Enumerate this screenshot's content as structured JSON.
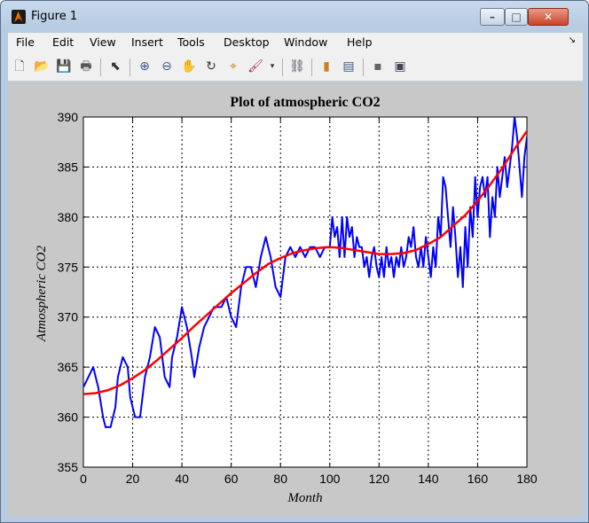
{
  "window": {
    "title": "Figure 1",
    "controls": {
      "minimize": "–",
      "maximize": "□",
      "close": "✕"
    }
  },
  "menu": [
    "File",
    "Edit",
    "View",
    "Insert",
    "Tools",
    "Desktop",
    "Window",
    "Help"
  ],
  "toolbar": {
    "icons": [
      "new-figure-icon",
      "open-file-icon",
      "save-icon",
      "print-icon",
      "pointer-icon",
      "zoom-in-icon",
      "zoom-out-icon",
      "pan-icon",
      "rotate-3d-icon",
      "data-cursor-icon",
      "brush-icon",
      "link-plot-icon",
      "colorbar-icon",
      "legend-icon",
      "hide-plot-tools-icon",
      "show-plot-tools-icon"
    ]
  },
  "chart_data": {
    "type": "line",
    "title": "Plot of atmospheric CO2",
    "xlabel": "Month",
    "ylabel": "Atmospheric CO2",
    "xlim": [
      0,
      180
    ],
    "ylim": [
      355,
      390
    ],
    "x_ticks": [
      0,
      20,
      40,
      60,
      80,
      100,
      120,
      140,
      160,
      180
    ],
    "y_ticks": [
      355,
      360,
      365,
      370,
      375,
      380,
      385,
      390
    ],
    "grid": true,
    "series": [
      {
        "color": "#0000ff",
        "x": [
          0,
          2,
          4,
          6,
          8,
          9,
          11,
          13,
          14,
          16,
          18,
          19,
          21,
          23,
          25,
          27,
          29,
          31,
          33,
          35,
          36,
          38,
          40,
          42,
          44,
          45,
          47,
          49,
          51,
          53,
          55,
          56,
          58,
          60,
          62,
          64,
          66,
          68,
          70,
          72,
          74,
          76,
          78,
          80,
          82,
          84,
          86,
          88,
          90,
          92,
          94,
          96,
          98,
          100,
          101,
          102,
          103,
          104,
          105,
          106,
          107,
          108,
          109,
          110,
          111,
          112,
          113,
          114,
          115,
          116,
          117,
          118,
          119,
          120,
          121,
          122,
          123,
          124,
          125,
          126,
          127,
          128,
          129,
          130,
          131,
          132,
          133,
          134,
          135,
          136,
          137,
          138,
          139,
          140,
          141,
          142,
          143,
          144,
          145,
          146,
          147,
          148,
          149,
          150,
          151,
          152,
          153,
          154,
          155,
          156,
          157,
          158,
          159,
          160,
          161,
          162,
          163,
          164,
          165,
          166,
          167,
          168,
          169,
          170,
          171,
          172,
          173,
          174,
          175,
          176,
          177,
          178,
          179,
          180
        ],
        "values": [
          363,
          364,
          365,
          363,
          360,
          359,
          359,
          361,
          364,
          366,
          365,
          362,
          360,
          360,
          364,
          366,
          369,
          368,
          364,
          363,
          366,
          368,
          371,
          369,
          366,
          364,
          367,
          369,
          370,
          371,
          371,
          371,
          372,
          370,
          369,
          373,
          375,
          375,
          373,
          376,
          378,
          376,
          373,
          372,
          376,
          377,
          376,
          377,
          376,
          377,
          377,
          376,
          377,
          377,
          380,
          378,
          379,
          376,
          380,
          376,
          380,
          378,
          379,
          376,
          378,
          377,
          377,
          375,
          376,
          374,
          376,
          377,
          375,
          374,
          376,
          374,
          377,
          375,
          376,
          374,
          376,
          375,
          377,
          375,
          376,
          378,
          377,
          379,
          376,
          375,
          377,
          375,
          378,
          376,
          374,
          377,
          375,
          380,
          378,
          384,
          383,
          380,
          377,
          381,
          378,
          374,
          377,
          373,
          379,
          375,
          381,
          378,
          384,
          380,
          383,
          384,
          382,
          384,
          378,
          382,
          380,
          385,
          382,
          384,
          386,
          383,
          385,
          387,
          390,
          388,
          385,
          382,
          386,
          388
        ]
      },
      {
        "color": "#ff0000",
        "x": [
          0,
          5,
          10,
          15,
          20,
          25,
          30,
          35,
          40,
          45,
          50,
          55,
          60,
          65,
          70,
          75,
          80,
          85,
          90,
          95,
          100,
          105,
          110,
          115,
          120,
          125,
          130,
          135,
          140,
          145,
          150,
          155,
          160,
          165,
          170,
          175,
          180
        ],
        "values": [
          362.3,
          362.4,
          362.7,
          363.2,
          363.9,
          364.7,
          365.7,
          366.8,
          367.9,
          369.1,
          370.2,
          371.3,
          372.4,
          373.4,
          374.4,
          375.3,
          375.9,
          376.4,
          376.7,
          376.9,
          377.0,
          376.9,
          376.7,
          376.5,
          376.3,
          376.3,
          376.4,
          376.7,
          377.3,
          378.0,
          379.1,
          380.2,
          381.6,
          383.2,
          384.9,
          386.8,
          388.6
        ]
      }
    ]
  }
}
